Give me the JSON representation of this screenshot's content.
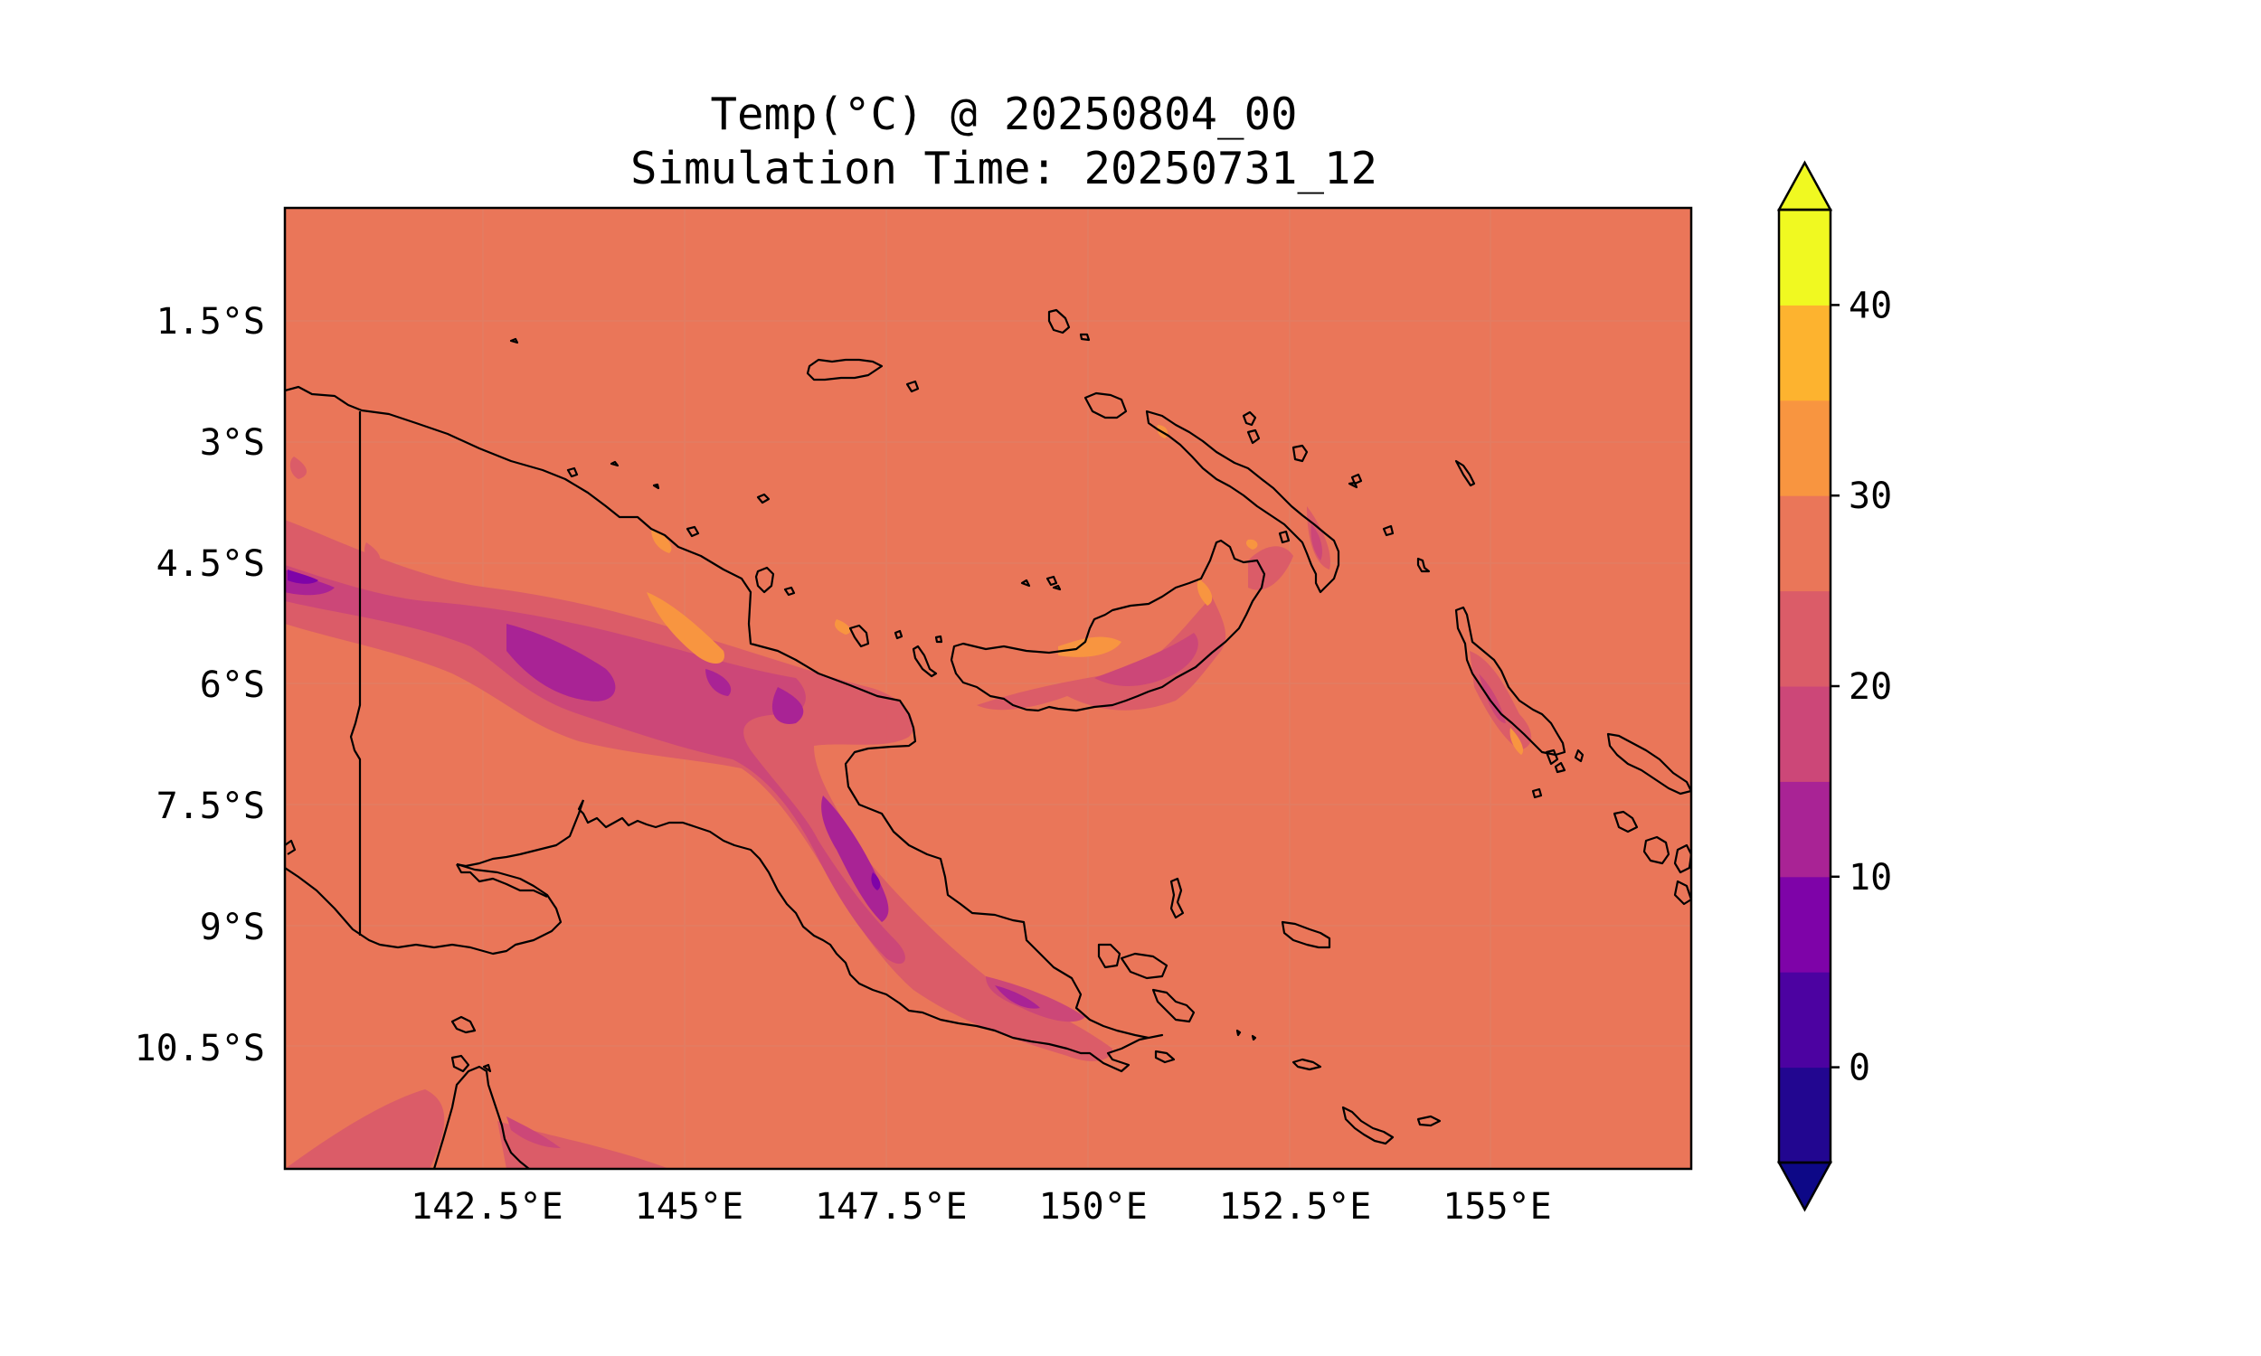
{
  "title": {
    "line1": "Temp(°C) @ 20250804_00",
    "line2": "Simulation Time: 20250731_12"
  },
  "map": {
    "region": "Papua New Guinea",
    "background_fill": "#EA7659",
    "coastline_color": "#000000",
    "lon_range": [
      140.0,
      157.4
    ],
    "lat_range": [
      -12.0,
      -0.1
    ],
    "lat_ticks": [
      "1.5°S",
      "3°S",
      "4.5°S",
      "6°S",
      "7.5°S",
      "9°S",
      "10.5°S"
    ],
    "lon_ticks": [
      "142.5°E",
      "145°E",
      "147.5°E",
      "150°E",
      "152.5°E",
      "155°E"
    ]
  },
  "colorbar": {
    "levels": [
      -5,
      0,
      5,
      10,
      15,
      20,
      25,
      30,
      35,
      40,
      45
    ],
    "colors": [
      "#220690",
      "#4C02A1",
      "#7E03A8",
      "#A92395",
      "#CC4778",
      "#DB5C68",
      "#EA7659",
      "#F89540",
      "#FDB32F",
      "#F0F921"
    ],
    "under_color": "#0D0887",
    "over_color": "#F0F921",
    "extend": "both",
    "tick_labels": [
      "0",
      "10",
      "20",
      "30",
      "40"
    ]
  }
}
